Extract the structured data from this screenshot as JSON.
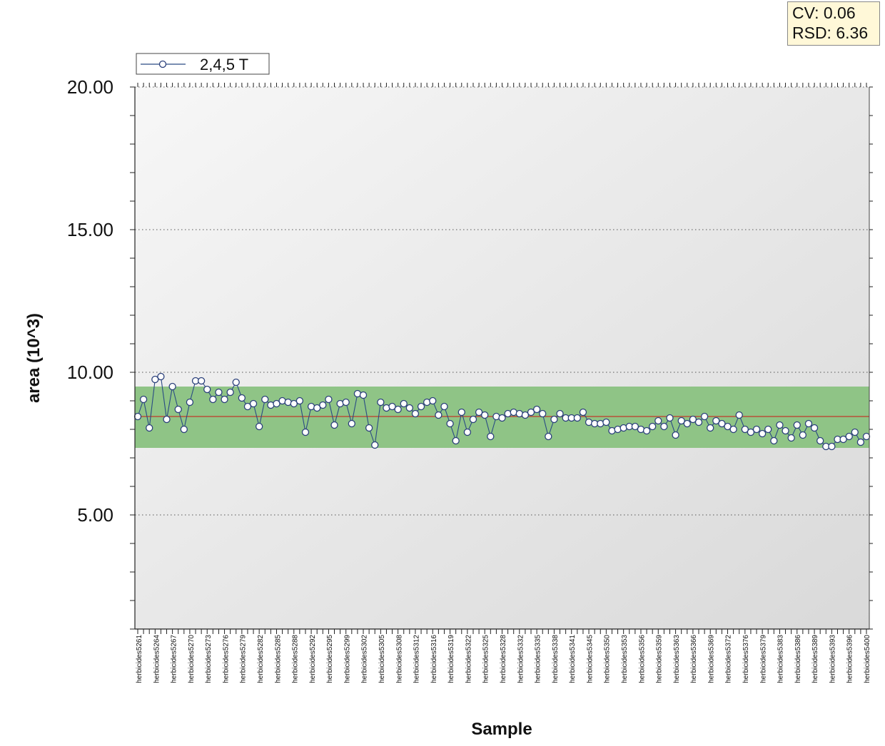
{
  "stats": {
    "cv_label": "CV: 0.06",
    "rsd_label": "RSD: 6.36"
  },
  "colors": {
    "band": "#8fc486",
    "mean_line": "#c0392b",
    "series_line": "#2a4b84",
    "marker_fill": "#ffffff",
    "marker_stroke": "#2a3f7a",
    "plot_bg_light": "#f7f7f7",
    "plot_bg_dark": "#d9d9d9"
  },
  "chart_data": {
    "type": "line",
    "title": "",
    "xlabel": "Sample",
    "ylabel": "area (10^3)",
    "ylim": [
      1,
      20
    ],
    "yticks": [
      5,
      10,
      15,
      20
    ],
    "ytick_labels": [
      "5.00",
      "10.00",
      "15.00",
      "20.00"
    ],
    "grid": "horizontal-dotted",
    "legend_position": "top-left",
    "mean": 8.45,
    "band": [
      7.35,
      9.5
    ],
    "x_tick_labels": [
      "herbicides5261",
      "herbicides5264",
      "herbicides5267",
      "herbicides5270",
      "herbicides5273",
      "herbicides5276",
      "herbicides5279",
      "herbicides5282",
      "herbicides5285",
      "herbicides5288",
      "herbicides5292",
      "herbicides5295",
      "herbicides5299",
      "herbicides5302",
      "herbicides5305",
      "herbicides5308",
      "herbicides5312",
      "herbicides5316",
      "herbicides5319",
      "herbicides5322",
      "herbicides5325",
      "herbicides5328",
      "herbicides5332",
      "herbicides5335",
      "herbicides5338",
      "herbicides5341",
      "herbicides5345",
      "herbicides5350",
      "herbicides5353",
      "herbicides5356",
      "herbicides5359",
      "herbicides5363",
      "herbicides5366",
      "herbicides5369",
      "herbicides5372",
      "herbicides5376",
      "herbicides5379",
      "herbicides5383",
      "herbicides5386",
      "herbicides5389",
      "herbicides5393",
      "herbicides5396",
      "herbicides5400"
    ],
    "series": [
      {
        "name": "2,4,5 T",
        "values": [
          8.45,
          9.05,
          8.05,
          9.75,
          9.85,
          8.35,
          9.5,
          8.7,
          8.0,
          8.95,
          9.7,
          9.7,
          9.4,
          9.05,
          9.3,
          9.05,
          9.3,
          9.65,
          9.1,
          8.8,
          8.9,
          8.1,
          9.05,
          8.85,
          8.9,
          9.0,
          8.95,
          8.9,
          9.0,
          7.9,
          8.8,
          8.75,
          8.85,
          9.05,
          8.15,
          8.9,
          8.95,
          8.2,
          9.25,
          9.2,
          8.05,
          7.45,
          8.95,
          8.75,
          8.8,
          8.7,
          8.9,
          8.75,
          8.55,
          8.8,
          8.95,
          9.0,
          8.5,
          8.8,
          8.2,
          7.6,
          8.6,
          7.9,
          8.35,
          8.6,
          8.5,
          7.75,
          8.45,
          8.4,
          8.55,
          8.6,
          8.55,
          8.5,
          8.6,
          8.7,
          8.55,
          7.75,
          8.35,
          8.55,
          8.4,
          8.4,
          8.4,
          8.6,
          8.25,
          8.2,
          8.2,
          8.25,
          7.95,
          8.0,
          8.05,
          8.1,
          8.1,
          8.0,
          7.95,
          8.1,
          8.3,
          8.1,
          8.4,
          7.8,
          8.3,
          8.2,
          8.35,
          8.25,
          8.45,
          8.05,
          8.3,
          8.2,
          8.1,
          8.0,
          8.5,
          8.0,
          7.9,
          8.0,
          7.85,
          8.0,
          7.6,
          8.15,
          7.95,
          7.7,
          8.15,
          7.8,
          8.2,
          8.05,
          7.6,
          7.4,
          7.4,
          7.65,
          7.65,
          7.75,
          7.9,
          7.55,
          7.75
        ]
      }
    ]
  }
}
